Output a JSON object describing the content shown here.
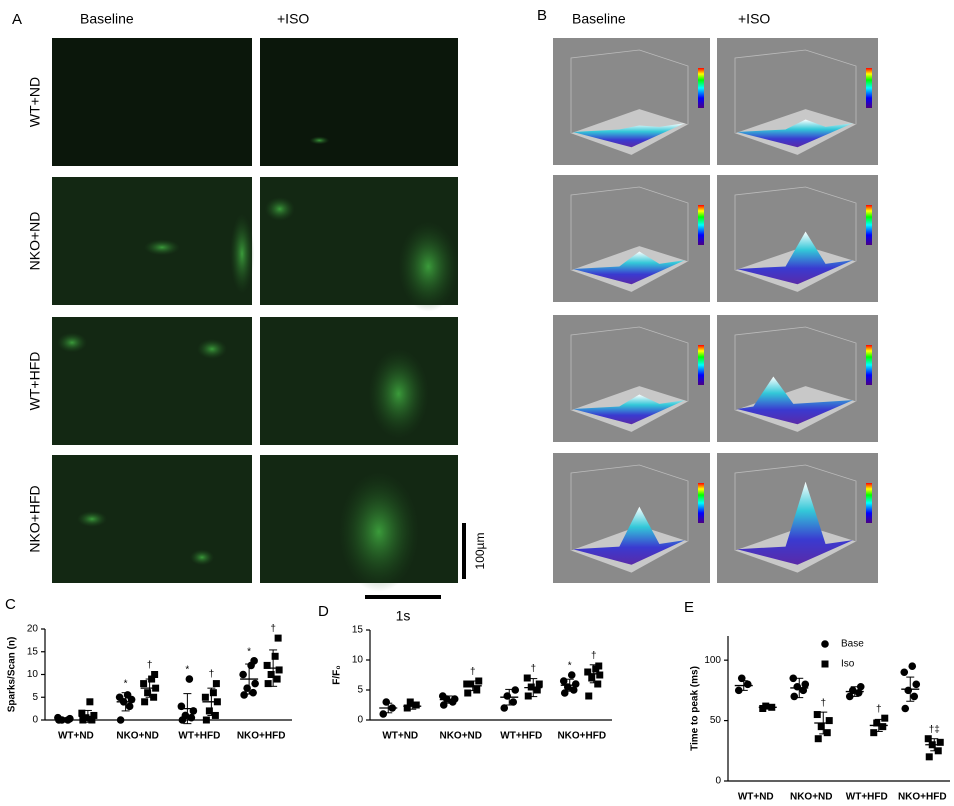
{
  "panels": {
    "A": {
      "letter": "A",
      "columns": [
        "Baseline",
        "+ISO"
      ],
      "rows": [
        "WT+ND",
        "NKO+ND",
        "WT+HFD",
        "NKO+HFD"
      ],
      "scale_y": "100µm",
      "scale_x": "1s"
    },
    "B": {
      "letter": "B",
      "columns": [
        "Baseline",
        "+ISO"
      ]
    }
  },
  "chart_data": [
    {
      "type": "dotplot",
      "letter": "C",
      "y_label": "Sparks/Scan (n)",
      "categories": [
        "WT+ND",
        "NKO+ND",
        "WT+HFD",
        "NKO+HFD"
      ],
      "ylim": [
        0,
        20
      ],
      "yticks": [
        0,
        5,
        10,
        15,
        20
      ],
      "series": [
        {
          "marker": "circle",
          "color": "#000000",
          "points": [
            [
              0,
              0,
              0,
              0.3,
              0.5
            ],
            [
              0,
              3,
              4,
              4.5,
              5,
              5.5
            ],
            [
              0,
              0.5,
              1,
              2,
              3,
              9
            ],
            [
              5.5,
              6,
              7,
              8,
              10,
              12,
              13
            ]
          ],
          "mean": [
            0.2,
            4,
            2.5,
            9
          ],
          "sd": [
            0.3,
            2,
            3.3,
            3.3
          ],
          "annotations": [
            null,
            "*",
            "*",
            "*"
          ]
        },
        {
          "marker": "square",
          "color": "#000000",
          "points": [
            [
              0,
              0,
              0.5,
              1,
              1.5,
              4
            ],
            [
              4,
              5,
              6,
              7,
              8,
              9,
              10
            ],
            [
              0,
              1,
              2,
              4,
              5,
              6,
              8
            ],
            [
              8,
              9,
              10,
              11,
              12,
              14,
              18
            ]
          ],
          "mean": [
            0.8,
            7,
            4,
            11.4
          ],
          "sd": [
            1.3,
            2,
            3,
            4
          ],
          "annotations": [
            null,
            "†",
            "†",
            "†"
          ]
        }
      ]
    },
    {
      "type": "dotplot",
      "letter": "D",
      "y_label": "F/F₀",
      "categories": [
        "WT+ND",
        "NKO+ND",
        "WT+HFD",
        "NKO+HFD"
      ],
      "ylim": [
        0,
        15
      ],
      "yticks": [
        0,
        5,
        10,
        15
      ],
      "series": [
        {
          "marker": "circle",
          "color": "#000000",
          "points": [
            [
              1,
              2,
              3
            ],
            [
              2.5,
              3,
              3.5,
              3.5,
              4
            ],
            [
              2,
              3,
              4,
              5
            ],
            [
              4.5,
              5,
              5.5,
              6,
              6.5,
              7.5
            ]
          ],
          "mean": [
            2,
            3.4,
            3.8,
            5.8
          ],
          "sd": [
            0.8,
            0.6,
            1.3,
            1
          ],
          "annotations": [
            null,
            null,
            null,
            "*"
          ]
        },
        {
          "marker": "square",
          "color": "#000000",
          "points": [
            [
              2,
              2.5,
              3
            ],
            [
              4.5,
              5,
              6,
              6.5,
              6
            ],
            [
              4,
              5,
              5.5,
              6,
              7
            ],
            [
              4,
              6,
              7,
              7.5,
              8,
              8.5,
              9
            ]
          ],
          "mean": [
            2.3,
            5.7,
            5.4,
            7.7
          ],
          "sd": [
            0.5,
            0.8,
            1.5,
            1.5
          ],
          "annotations": [
            null,
            "†",
            "†",
            "†"
          ]
        }
      ]
    },
    {
      "type": "dotplot",
      "letter": "E",
      "y_label": "Time to peak (ms)",
      "categories": [
        "WT+ND",
        "NKO+ND",
        "WT+HFD",
        "NKO+HFD"
      ],
      "ylim": [
        0,
        120
      ],
      "yticks": [
        0,
        50,
        100
      ],
      "series": [
        {
          "name": "Base",
          "marker": "circle",
          "color": "#000000",
          "points": [
            [
              75,
              80,
              85
            ],
            [
              70,
              75,
              78,
              80,
              85
            ],
            [
              70,
              73,
              75,
              78
            ],
            [
              60,
              70,
              75,
              80,
              90,
              95
            ]
          ],
          "mean": [
            79,
            77,
            74,
            76
          ],
          "sd": [
            4,
            8,
            4,
            10
          ],
          "annotations": [
            null,
            null,
            null,
            null
          ]
        },
        {
          "name": "Iso",
          "marker": "square",
          "color": "#000000",
          "points": [
            [
              60,
              61,
              62
            ],
            [
              35,
              40,
              45,
              50,
              55
            ],
            [
              40,
              45,
              48,
              52
            ],
            [
              20,
              25,
              30,
              32,
              35
            ]
          ],
          "mean": [
            61,
            48,
            46,
            30
          ],
          "sd": [
            1,
            9,
            5,
            5
          ],
          "annotations": [
            null,
            "†",
            "†",
            "†‡"
          ]
        }
      ]
    }
  ]
}
